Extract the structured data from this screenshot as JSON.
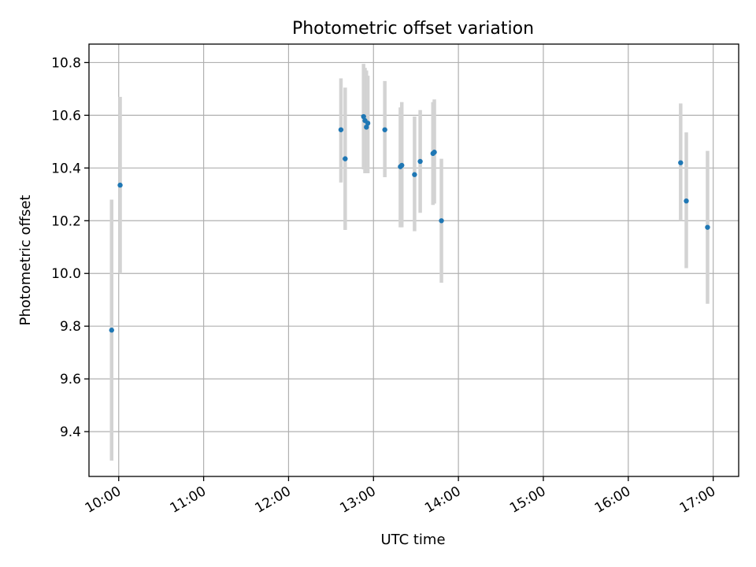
{
  "chart_data": {
    "type": "scatter",
    "title": "Photometric offset variation",
    "xlabel": "UTC time",
    "ylabel": "Photometric offset",
    "x_tick_labels": [
      "10:00",
      "11:00",
      "12:00",
      "13:00",
      "14:00",
      "15:00",
      "16:00",
      "17:00"
    ],
    "y_tick_labels": [
      "9.4",
      "9.6",
      "9.8",
      "10.0",
      "10.2",
      "10.4",
      "10.6",
      "10.8"
    ],
    "xlim": [
      "09:39",
      "17:18"
    ],
    "ylim": [
      9.23,
      10.87
    ],
    "grid": true,
    "colors": {
      "points": "#1f77b4",
      "error_bars": "#d3d3d3"
    },
    "points": [
      {
        "x": "09:55",
        "y": 9.785,
        "yerr_low": 9.29,
        "yerr_high": 10.28
      },
      {
        "x": "10:01",
        "y": 10.335,
        "yerr_low": 10.0,
        "yerr_high": 10.67
      },
      {
        "x": "12:37",
        "y": 10.545,
        "yerr_low": 10.345,
        "yerr_high": 10.74
      },
      {
        "x": "12:40",
        "y": 10.435,
        "yerr_low": 10.165,
        "yerr_high": 10.705
      },
      {
        "x": "12:53",
        "y": 10.595,
        "yerr_low": 10.395,
        "yerr_high": 10.795
      },
      {
        "x": "12:54",
        "y": 10.58,
        "yerr_low": 10.38,
        "yerr_high": 10.78
      },
      {
        "x": "12:55",
        "y": 10.555,
        "yerr_low": 10.385,
        "yerr_high": 10.77
      },
      {
        "x": "12:56",
        "y": 10.57,
        "yerr_low": 10.38,
        "yerr_high": 10.75
      },
      {
        "x": "13:08",
        "y": 10.545,
        "yerr_low": 10.365,
        "yerr_high": 10.73
      },
      {
        "x": "13:19",
        "y": 10.405,
        "yerr_low": 10.175,
        "yerr_high": 10.63
      },
      {
        "x": "13:20",
        "y": 10.41,
        "yerr_low": 10.175,
        "yerr_high": 10.65
      },
      {
        "x": "13:29",
        "y": 10.375,
        "yerr_low": 10.16,
        "yerr_high": 10.595
      },
      {
        "x": "13:33",
        "y": 10.425,
        "yerr_low": 10.23,
        "yerr_high": 10.62
      },
      {
        "x": "13:42",
        "y": 10.455,
        "yerr_low": 10.26,
        "yerr_high": 10.65
      },
      {
        "x": "13:43",
        "y": 10.46,
        "yerr_low": 10.265,
        "yerr_high": 10.66
      },
      {
        "x": "13:48",
        "y": 10.2,
        "yerr_low": 9.965,
        "yerr_high": 10.435
      },
      {
        "x": "16:37",
        "y": 10.42,
        "yerr_low": 10.2,
        "yerr_high": 10.645
      },
      {
        "x": "16:41",
        "y": 10.275,
        "yerr_low": 10.02,
        "yerr_high": 10.535
      },
      {
        "x": "16:56",
        "y": 10.175,
        "yerr_low": 9.885,
        "yerr_high": 10.465
      }
    ]
  }
}
